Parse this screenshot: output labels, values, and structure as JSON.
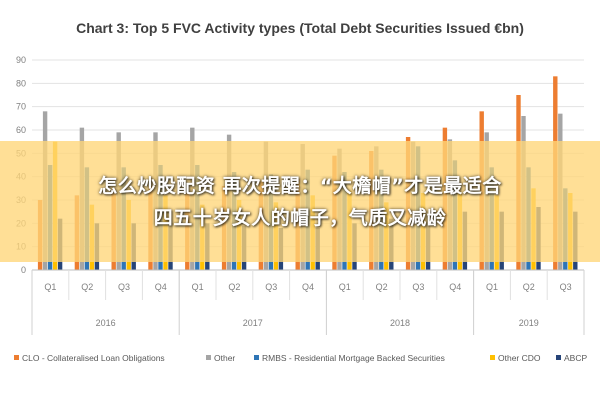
{
  "chart_data": {
    "type": "bar",
    "title": "Chart 3: Top 5 FVC Activity types (Total Debt Securities Issued €bn)",
    "ylim": [
      0,
      90
    ],
    "yticks": [
      0,
      10,
      20,
      30,
      40,
      50,
      60,
      70,
      80,
      90
    ],
    "grid": true,
    "legend_position": "bottom",
    "categories": [
      "Q1",
      "Q2",
      "Q3",
      "Q4",
      "Q1",
      "Q2",
      "Q3",
      "Q4",
      "Q1",
      "Q2",
      "Q3",
      "Q4",
      "Q1",
      "Q2",
      "Q3"
    ],
    "years": [
      {
        "label": "2016",
        "span": 4
      },
      {
        "label": "2017",
        "span": 4
      },
      {
        "label": "2018",
        "span": 4
      },
      {
        "label": "2019",
        "span": 3
      }
    ],
    "series": [
      {
        "name": "CLO - Collateralised Loan Obligations",
        "color": "#ED7D31",
        "values": [
          30,
          32,
          35,
          36,
          33,
          36,
          38,
          39,
          49,
          51,
          57,
          61,
          68,
          75,
          83
        ]
      },
      {
        "name": "Other",
        "color": "#A5A5A5",
        "values": [
          68,
          61,
          59,
          59,
          61,
          58,
          55,
          54,
          52,
          53,
          55,
          56,
          59,
          66,
          67
        ]
      },
      {
        "name": "RMBS - Residential Mortgage Backed Securities",
        "color": "#2E75B6",
        "values": [
          45,
          44,
          44,
          45,
          45,
          42,
          41,
          43,
          42,
          43,
          53,
          47,
          44,
          44,
          35
        ]
      },
      {
        "name": "Other CDO",
        "color": "#FFC000",
        "values": [
          55,
          28,
          30,
          32,
          28,
          30,
          29,
          32,
          34,
          29,
          33,
          33,
          32,
          35,
          33
        ]
      },
      {
        "name": "ABCP",
        "color": "#264478",
        "values": [
          22,
          20,
          20,
          20,
          20,
          19,
          18,
          18,
          20,
          22,
          24,
          25,
          25,
          27,
          25
        ]
      }
    ]
  },
  "overlay": {
    "line1": "怎么炒股配资 再次提醒：“大檐帽”才是最适合",
    "line2": "四五十岁女人的帽子，气质又减龄"
  }
}
